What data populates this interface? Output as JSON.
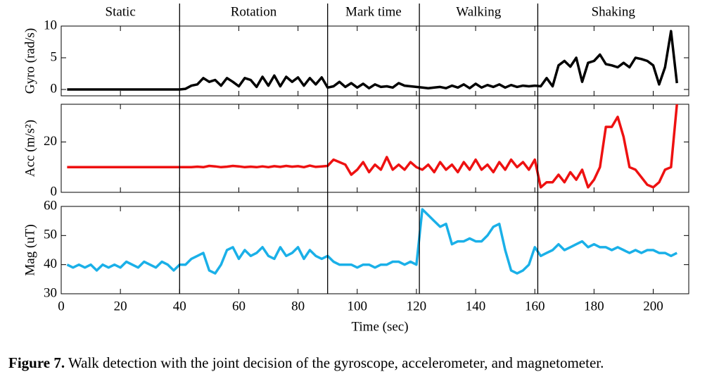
{
  "chart_data": {
    "type": "line",
    "segments": {
      "labels": [
        "Static",
        "Rotation",
        "Mark time",
        "Walking",
        "Shaking"
      ],
      "boundaries": [
        40,
        90,
        121,
        161
      ]
    },
    "x": [
      2,
      4,
      6,
      8,
      10,
      12,
      14,
      16,
      18,
      20,
      22,
      24,
      26,
      28,
      30,
      32,
      34,
      36,
      38,
      40,
      42,
      44,
      46,
      48,
      50,
      52,
      54,
      56,
      58,
      60,
      62,
      64,
      66,
      68,
      70,
      72,
      74,
      76,
      78,
      80,
      82,
      84,
      86,
      88,
      90,
      92,
      94,
      96,
      98,
      100,
      102,
      104,
      106,
      108,
      110,
      112,
      114,
      116,
      118,
      120,
      122,
      124,
      126,
      128,
      130,
      132,
      134,
      136,
      138,
      140,
      142,
      144,
      146,
      148,
      150,
      152,
      154,
      156,
      158,
      160,
      162,
      164,
      166,
      168,
      170,
      172,
      174,
      176,
      178,
      180,
      182,
      184,
      186,
      188,
      190,
      192,
      194,
      196,
      198,
      200,
      202,
      204,
      206,
      208
    ],
    "xlim": [
      0,
      212
    ],
    "xticks": [
      0,
      20,
      40,
      60,
      80,
      100,
      120,
      140,
      160,
      180,
      200
    ],
    "xlabel": "Time (sec)",
    "panels": [
      {
        "ylabel": "Gyro (rad/s)",
        "ylim": [
          -1,
          10
        ],
        "yticks": [
          0,
          5,
          10
        ],
        "series": [
          {
            "color": "#000000",
            "values": [
              0,
              0,
              0,
              0,
              0,
              0,
              0,
              0,
              0,
              0,
              0,
              0,
              0,
              0,
              0,
              0,
              0,
              0,
              0,
              0,
              0.1,
              0.6,
              0.8,
              1.8,
              1.2,
              1.5,
              0.6,
              1.8,
              1.2,
              0.5,
              1.8,
              1.5,
              0.4,
              2.0,
              0.6,
              2.2,
              0.5,
              2.0,
              1.2,
              1.9,
              0.6,
              1.8,
              0.8,
              1.9,
              0.3,
              0.5,
              1.2,
              0.4,
              1.0,
              0.3,
              0.9,
              0.2,
              0.8,
              0.4,
              0.5,
              0.3,
              1.0,
              0.6,
              0.5,
              0.4,
              0.3,
              0.2,
              0.3,
              0.4,
              0.2,
              0.6,
              0.3,
              0.8,
              0.2,
              0.9,
              0.3,
              0.7,
              0.4,
              0.8,
              0.3,
              0.7,
              0.4,
              0.6,
              0.5,
              0.6,
              0.5,
              1.8,
              0.5,
              3.8,
              4.5,
              3.6,
              5.0,
              1.2,
              4.2,
              4.5,
              5.5,
              4.0,
              3.8,
              3.5,
              4.2,
              3.5,
              5.0,
              4.8,
              4.5,
              3.8,
              0.8,
              3.5,
              9.2,
              1.0
            ]
          }
        ]
      },
      {
        "ylabel": "Acc (m/s²)",
        "ylim": [
          0,
          35
        ],
        "yticks": [
          0,
          20
        ],
        "series": [
          {
            "color": "#ee1111",
            "values": [
              10,
              10,
              10,
              10,
              10,
              10,
              10,
              10,
              10,
              10,
              10,
              10,
              10,
              10,
              10,
              10,
              10,
              10,
              10,
              10,
              10,
              10,
              10.2,
              10,
              10.5,
              10.3,
              10,
              10.2,
              10.5,
              10.3,
              10,
              10.2,
              10,
              10.3,
              10,
              10.4,
              10.1,
              10.5,
              10.2,
              10.4,
              10,
              10.6,
              10.1,
              10.3,
              10.5,
              13,
              12,
              11,
              7,
              9,
              12,
              8,
              11,
              9,
              14,
              9,
              11,
              9,
              12,
              10,
              9,
              11,
              8,
              12,
              9,
              11,
              8,
              12,
              9,
              13,
              9,
              11,
              8,
              12,
              9,
              13,
              10,
              12,
              9,
              13,
              2,
              4,
              4,
              7,
              4,
              8,
              5,
              9,
              2,
              5,
              10,
              26,
              26,
              30,
              22,
              10,
              9,
              6,
              3,
              2,
              4,
              9,
              10,
              35
            ]
          }
        ]
      },
      {
        "ylabel": "Mag (uT)",
        "ylim": [
          30,
          60
        ],
        "yticks": [
          30,
          40,
          50,
          60
        ],
        "series": [
          {
            "color": "#1ab0e8",
            "values": [
              40,
              39,
              40,
              39,
              40,
              38,
              40,
              39,
              40,
              39,
              41,
              40,
              39,
              41,
              40,
              39,
              41,
              40,
              38,
              40,
              40,
              42,
              43,
              44,
              38,
              37,
              40,
              45,
              46,
              42,
              45,
              43,
              44,
              46,
              43,
              42,
              46,
              43,
              44,
              46,
              42,
              45,
              43,
              42,
              43,
              41,
              40,
              40,
              40,
              39,
              40,
              40,
              39,
              40,
              40,
              41,
              41,
              40,
              41,
              40,
              59,
              57,
              55,
              53,
              54,
              47,
              48,
              48,
              49,
              48,
              48,
              50,
              53,
              54,
              45,
              38,
              37,
              38,
              40,
              46,
              43,
              44,
              45,
              47,
              45,
              46,
              47,
              48,
              46,
              47,
              46,
              46,
              45,
              46,
              45,
              44,
              45,
              44,
              45,
              45,
              44,
              44,
              43,
              44
            ]
          }
        ]
      }
    ],
    "caption": {
      "label": "Figure 7.",
      "text": "Walk detection with the joint decision of the gyroscope, accelerometer, and magnetometer."
    }
  }
}
